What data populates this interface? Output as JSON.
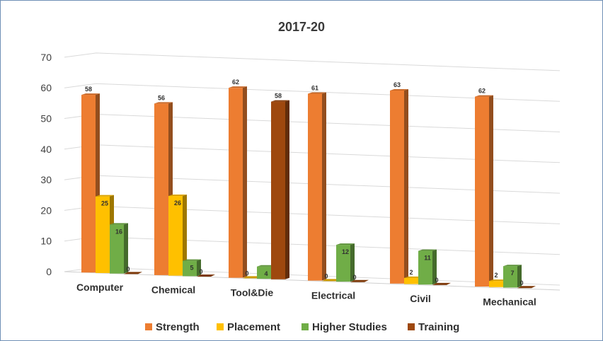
{
  "chart_data": {
    "type": "bar",
    "title": "2017-20",
    "categories": [
      "Computer",
      "Chemical",
      "Tool&Die",
      "Electrical",
      "Civil",
      "Mechanical"
    ],
    "series": [
      {
        "name": "Strength",
        "color": "#ED7D31",
        "values": [
          58,
          56,
          62,
          61,
          63,
          62
        ]
      },
      {
        "name": "Placement",
        "color": "#FFC000",
        "values": [
          25,
          26,
          0,
          0,
          2,
          2
        ]
      },
      {
        "name": "Higher Studies",
        "color": "#70AD47",
        "values": [
          16,
          5,
          4,
          12,
          11,
          7
        ]
      },
      {
        "name": "Training",
        "color": "#9E480E",
        "values": [
          0,
          0,
          58,
          0,
          0,
          0
        ]
      }
    ],
    "yticks": [
      0,
      10,
      20,
      30,
      40,
      50,
      60,
      70
    ],
    "ylim": [
      0,
      70
    ],
    "grid": true,
    "legend_position": "bottom",
    "style": "3d-bar"
  }
}
